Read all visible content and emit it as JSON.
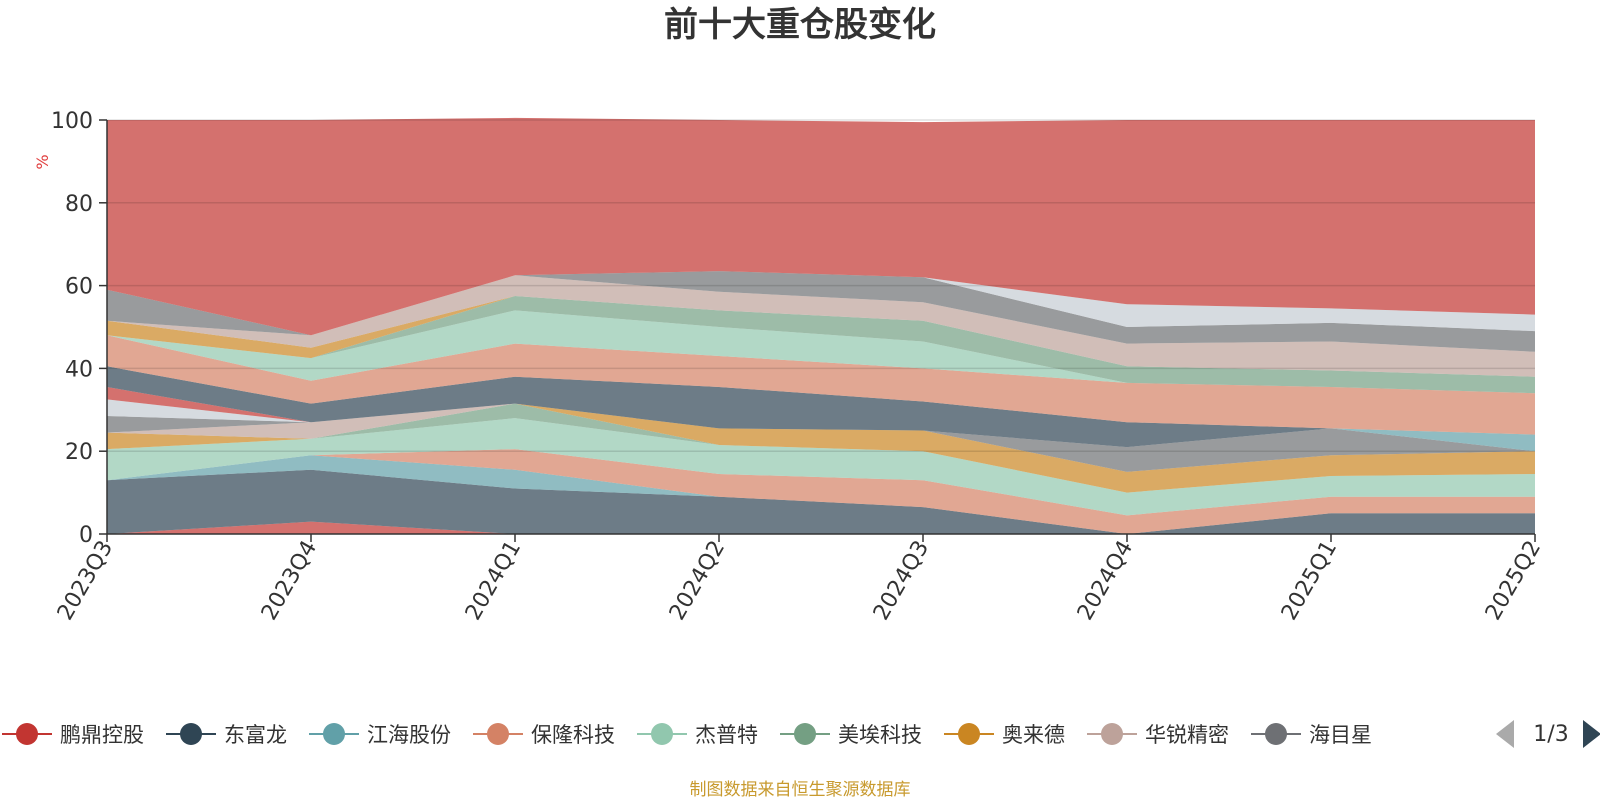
{
  "chart_data": {
    "type": "area",
    "stacked": true,
    "title": "前十大重仓股变化",
    "ylabel": "%",
    "ylim": [
      0,
      100
    ],
    "yticks": [
      0,
      20,
      40,
      60,
      80,
      100
    ],
    "grid": true,
    "categories": [
      "2023Q3",
      "2023Q4",
      "2024Q1",
      "2024Q2",
      "2024Q3",
      "2024Q4",
      "2025Q1",
      "2025Q2"
    ],
    "series": [
      {
        "name": "鹏鼎控股",
        "color": "#c23531",
        "values": [
          0,
          3,
          0,
          0,
          0,
          0,
          0,
          0
        ]
      },
      {
        "name": "东富龙",
        "color": "#2f4554",
        "values": [
          13,
          12.5,
          11,
          9,
          6.5,
          0,
          5,
          5
        ]
      },
      {
        "name": "江海股份",
        "color": "#61a0a8",
        "values": [
          0,
          3.5,
          4.5,
          0,
          0,
          0,
          0,
          0
        ]
      },
      {
        "name": "保隆科技",
        "color": "#d48265",
        "values": [
          0,
          0,
          5,
          5.5,
          6.5,
          4.5,
          4,
          4
        ]
      },
      {
        "name": "杰普特",
        "color": "#91c7ae",
        "values": [
          7.5,
          4,
          7.5,
          7,
          7,
          5.5,
          5,
          5.5
        ]
      },
      {
        "name": "美埃科技",
        "color": "#749f83",
        "values": [
          0,
          0,
          3.5,
          0,
          0,
          0,
          0,
          0
        ]
      },
      {
        "name": "奥来德",
        "color": "#ca8622",
        "values": [
          4,
          0,
          0,
          4,
          5,
          5,
          5,
          5.5
        ]
      },
      {
        "name": "华锐精密",
        "color": "#bda29a",
        "values": [
          0,
          4,
          0,
          0,
          0,
          0,
          0,
          0
        ]
      },
      {
        "name": "海目星",
        "color": "#6e7074",
        "values": [
          4,
          0,
          0,
          0,
          0,
          6,
          6.5,
          0
        ]
      },
      {
        "name": "",
        "color": "#c4ccd3",
        "values": [
          4,
          0,
          0,
          0,
          0,
          0,
          0,
          0
        ]
      },
      {
        "name": "",
        "color": "#c23531",
        "values": [
          3,
          0,
          0,
          0,
          0,
          0,
          0,
          0
        ]
      },
      {
        "name": "",
        "color": "#2f4554",
        "values": [
          5,
          4.5,
          6.5,
          10,
          7,
          6,
          0,
          0
        ]
      },
      {
        "name": "",
        "color": "#61a0a8",
        "values": [
          0,
          0,
          0,
          0,
          0,
          0,
          0,
          4
        ]
      },
      {
        "name": "",
        "color": "#d48265",
        "values": [
          7.5,
          5.5,
          8,
          7.5,
          8,
          9.5,
          10,
          10
        ]
      },
      {
        "name": "",
        "color": "#91c7ae",
        "values": [
          0,
          5.5,
          8,
          7,
          6.5,
          0,
          0,
          0
        ]
      },
      {
        "name": "",
        "color": "#749f83",
        "values": [
          0,
          0,
          3.5,
          4,
          5,
          4,
          4,
          4
        ]
      },
      {
        "name": "",
        "color": "#ca8622",
        "values": [
          3.5,
          2.5,
          0,
          0,
          0,
          0,
          0,
          0
        ]
      },
      {
        "name": "",
        "color": "#bda29a",
        "values": [
          0,
          3,
          5,
          4.5,
          4.5,
          5.5,
          7,
          6
        ]
      },
      {
        "name": "",
        "color": "#6e7074",
        "values": [
          7.5,
          0,
          0,
          5,
          6,
          4,
          4.5,
          5
        ]
      },
      {
        "name": "",
        "color": "#c4ccd3",
        "values": [
          0,
          0,
          0,
          0,
          0,
          5.5,
          3.5,
          4
        ]
      },
      {
        "name": "",
        "color": "#c23531",
        "values": [
          41,
          52,
          38,
          36.5,
          37.5,
          44.5,
          45.5,
          47
        ]
      }
    ]
  },
  "legend": {
    "page": "1/3"
  },
  "source_note": "制图数据来自恒生聚源数据库"
}
